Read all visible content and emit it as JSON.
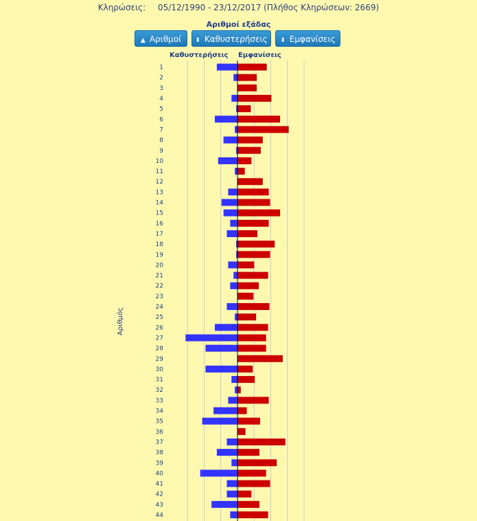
{
  "header": {
    "label": "Κληρώσεις:",
    "range": "05/12/1990 - 23/12/2017  (Πλήθος Κληρώσεων: 2669)"
  },
  "buttons": [
    {
      "label": "Αριθμοί",
      "icon": "▲"
    },
    {
      "label": "Καθυστερήσεις",
      "icon": "⬍"
    },
    {
      "label": "Εμφανίσεις",
      "icon": "⬍"
    }
  ],
  "colors": {
    "delays": "#3333FF",
    "appearances": "#CC0000"
  },
  "chart_data": {
    "type": "bar",
    "orientation": "horizontal-diverging",
    "title": "Αριθμοί εξάδας",
    "ylabel": "Αριθμός",
    "left_header": "Καθυστερήσεις",
    "right_header": "Εμφανίσεις",
    "categories": [
      "1",
      "2",
      "3",
      "4",
      "5",
      "6",
      "7",
      "8",
      "9",
      "10",
      "11",
      "12",
      "13",
      "14",
      "15",
      "16",
      "17",
      "18",
      "19",
      "20",
      "21",
      "22",
      "23",
      "24",
      "25",
      "26",
      "27",
      "28",
      "29",
      "30",
      "31",
      "32",
      "33",
      "34",
      "35",
      "36",
      "37",
      "38",
      "39",
      "40",
      "41",
      "42",
      "43",
      "44"
    ],
    "series": [
      {
        "name": "Καθυστερήσεις",
        "values": [
          31,
          6,
          0,
          9,
          2,
          34,
          4,
          21,
          2,
          29,
          4,
          0,
          14,
          24,
          21,
          11,
          16,
          2,
          2,
          14,
          6,
          11,
          0,
          16,
          4,
          34,
          78,
          48,
          0,
          48,
          9,
          4,
          14,
          36,
          53,
          0,
          16,
          31,
          9,
          56,
          16,
          16,
          39,
          11
        ]
      },
      {
        "name": "Εμφανίσεις",
        "values": [
          44,
          29,
          29,
          51,
          20,
          64,
          77,
          38,
          35,
          21,
          11,
          38,
          47,
          49,
          64,
          47,
          30,
          56,
          49,
          25,
          46,
          32,
          24,
          48,
          28,
          46,
          43,
          43,
          68,
          23,
          26,
          5,
          47,
          14,
          34,
          12,
          72,
          33,
          59,
          43,
          49,
          21,
          33,
          46
        ]
      }
    ],
    "xlim": [
      -100,
      100
    ],
    "grid": true
  }
}
